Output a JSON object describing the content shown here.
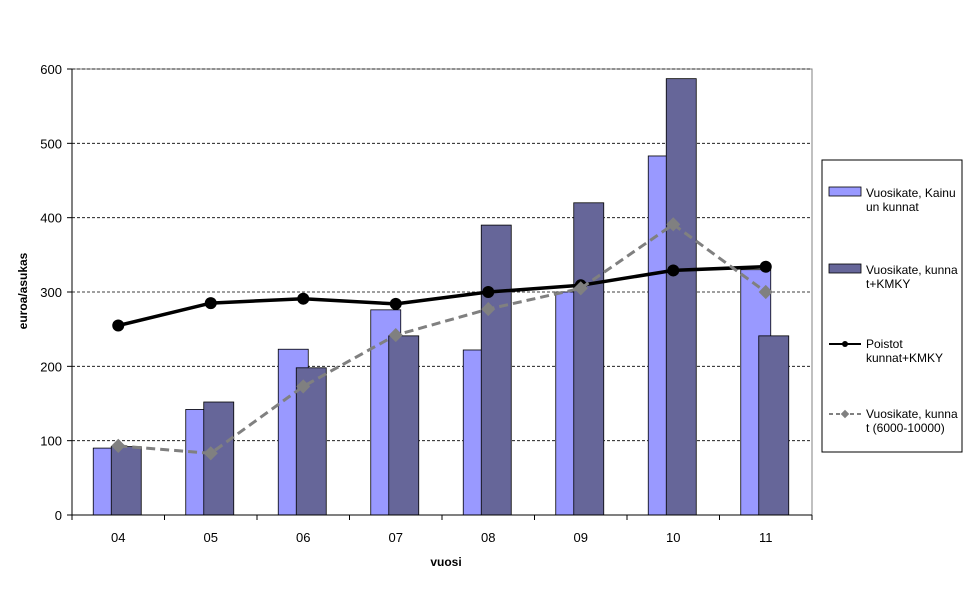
{
  "chart_data": {
    "type": "bar",
    "categories": [
      "04",
      "05",
      "06",
      "07",
      "08",
      "09",
      "10",
      "11"
    ],
    "xlabel": "vuosi",
    "ylabel": "euroa/asukas",
    "ylim": [
      0,
      600
    ],
    "yticks": [
      "0",
      "100",
      "200",
      "300",
      "400",
      "500",
      "600"
    ],
    "grid": true,
    "legend_position": "right",
    "series": [
      {
        "name": "Vuosikate, Kainuun kunnat",
        "legend_lines": [
          "Vuosikate, Kainu",
          "un kunnat"
        ],
        "kind": "bar",
        "color": "#9999ff",
        "values": [
          90,
          142,
          223,
          276,
          222,
          300,
          483,
          330
        ]
      },
      {
        "name": "Vuosikate, kunnat+KMKY",
        "legend_lines": [
          "Vuosikate, kunna",
          "t+KMKY"
        ],
        "kind": "bar",
        "color": "#666699",
        "values": [
          92,
          152,
          198,
          241,
          390,
          420,
          587,
          241
        ]
      },
      {
        "name": "Poistot kunnat+KMKY",
        "legend_lines": [
          "Poistot",
          "kunnat+KMKY"
        ],
        "kind": "line",
        "color": "#000000",
        "values": [
          255,
          285,
          291,
          284,
          300,
          309,
          329,
          334
        ]
      },
      {
        "name": "Vuosikate, kunnat (6000-10000)",
        "legend_lines": [
          "Vuosikate, kunna",
          "t (6000-10000)"
        ],
        "kind": "line-dashed",
        "color": "#808080",
        "values": [
          93,
          83,
          173,
          242,
          277,
          305,
          391,
          300
        ]
      }
    ]
  }
}
